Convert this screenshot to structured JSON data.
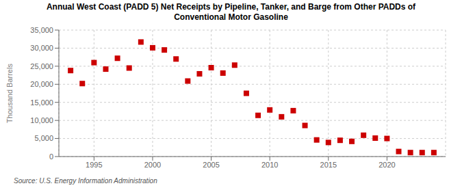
{
  "chart_data": {
    "type": "scatter",
    "title": "Annual West Coast (PADD 5) Net Receipts by Pipeline, Tanker, and Barge from Other PADDs of\nConventional Motor Gasoline",
    "y_label": "Thousand Barrels",
    "annotations": [
      "Source: U.S. Energy Information Administration"
    ],
    "x": [
      1993,
      1994,
      1995,
      1996,
      1997,
      1998,
      1999,
      2000,
      2001,
      2002,
      2003,
      2004,
      2005,
      2006,
      2007,
      2008,
      2009,
      2010,
      2011,
      2012,
      2013,
      2014,
      2015,
      2016,
      2017,
      2018,
      2019,
      2020,
      2021,
      2022,
      2023,
      2024
    ],
    "values": [
      23800,
      20200,
      26000,
      24200,
      27200,
      24500,
      31700,
      30100,
      29500,
      27000,
      20900,
      22900,
      24600,
      23100,
      25300,
      17500,
      11400,
      12900,
      11000,
      12700,
      8600,
      4600,
      3900,
      4500,
      4200,
      5900,
      5100,
      5000,
      1400,
      1100,
      1100,
      1100
    ],
    "color": "#cc0000",
    "marker": "square",
    "xlim": [
      1992,
      2025
    ],
    "ylim": [
      0,
      35000
    ],
    "xticks": [
      1995,
      2000,
      2005,
      2010,
      2015,
      2020
    ],
    "yticks": [
      0,
      {
        "value": 5000,
        "label": "5,000"
      },
      {
        "value": 10000,
        "label": "10,000"
      },
      {
        "value": 15000,
        "label": "15,000"
      },
      {
        "value": 20000,
        "label": "20,000"
      },
      {
        "value": 25000,
        "label": "25,000"
      },
      {
        "value": 30000,
        "label": "30,000"
      },
      {
        "value": 35000,
        "label": "35,000"
      }
    ],
    "grid": true
  }
}
